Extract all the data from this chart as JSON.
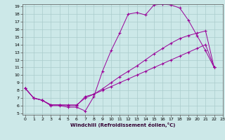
{
  "xlabel": "Windchill (Refroidissement éolien,°C)",
  "background_color": "#cce8e8",
  "line_color": "#990099",
  "grid_color": "#aacccc",
  "xlim": [
    0,
    23
  ],
  "ylim": [
    5,
    19
  ],
  "yticks": [
    5,
    6,
    7,
    8,
    9,
    10,
    11,
    12,
    13,
    14,
    15,
    16,
    17,
    18,
    19
  ],
  "xticks": [
    0,
    1,
    2,
    3,
    4,
    5,
    6,
    7,
    8,
    9,
    10,
    11,
    12,
    13,
    14,
    15,
    16,
    17,
    18,
    19,
    20,
    21,
    22,
    23
  ],
  "series1": [
    [
      0,
      8.3
    ],
    [
      1,
      7.0
    ],
    [
      2,
      6.7
    ],
    [
      3,
      6.0
    ],
    [
      4,
      6.0
    ],
    [
      5,
      5.8
    ],
    [
      6,
      5.8
    ],
    [
      7,
      5.3
    ],
    [
      8,
      7.2
    ],
    [
      9,
      10.5
    ],
    [
      10,
      13.2
    ],
    [
      11,
      15.5
    ],
    [
      12,
      18.0
    ],
    [
      13,
      18.2
    ],
    [
      14,
      17.9
    ],
    [
      15,
      19.2
    ],
    [
      16,
      19.3
    ],
    [
      17,
      19.2
    ],
    [
      18,
      18.8
    ],
    [
      19,
      17.2
    ],
    [
      20,
      15.2
    ],
    [
      21,
      13.2
    ],
    [
      22,
      11.0
    ]
  ],
  "series2": [
    [
      0,
      8.3
    ],
    [
      1,
      7.0
    ],
    [
      2,
      6.7
    ],
    [
      3,
      6.1
    ],
    [
      4,
      6.1
    ],
    [
      5,
      6.1
    ],
    [
      6,
      6.1
    ],
    [
      7,
      7.0
    ],
    [
      8,
      7.5
    ],
    [
      9,
      8.2
    ],
    [
      10,
      9.0
    ],
    [
      11,
      9.8
    ],
    [
      12,
      10.5
    ],
    [
      13,
      11.2
    ],
    [
      14,
      12.0
    ],
    [
      15,
      12.8
    ],
    [
      16,
      13.5
    ],
    [
      17,
      14.2
    ],
    [
      18,
      14.8
    ],
    [
      19,
      15.2
    ],
    [
      20,
      15.5
    ],
    [
      21,
      15.8
    ],
    [
      22,
      11.0
    ]
  ],
  "series3": [
    [
      0,
      8.3
    ],
    [
      1,
      7.0
    ],
    [
      2,
      6.7
    ],
    [
      3,
      6.1
    ],
    [
      4,
      6.1
    ],
    [
      5,
      6.0
    ],
    [
      6,
      6.0
    ],
    [
      7,
      7.2
    ],
    [
      8,
      7.5
    ],
    [
      9,
      8.0
    ],
    [
      10,
      8.5
    ],
    [
      11,
      9.0
    ],
    [
      12,
      9.5
    ],
    [
      13,
      10.0
    ],
    [
      14,
      10.5
    ],
    [
      15,
      11.0
    ],
    [
      16,
      11.5
    ],
    [
      17,
      12.0
    ],
    [
      18,
      12.5
    ],
    [
      19,
      13.0
    ],
    [
      20,
      13.5
    ],
    [
      21,
      14.0
    ],
    [
      22,
      11.0
    ]
  ]
}
